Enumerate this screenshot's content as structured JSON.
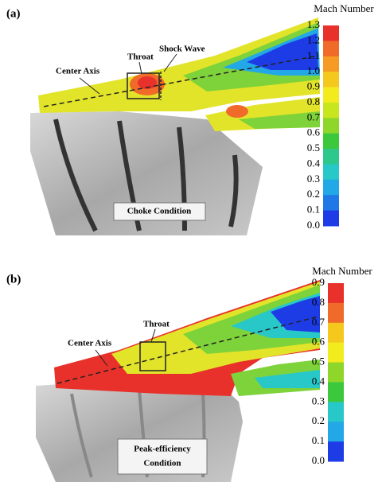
{
  "panels": [
    {
      "label": "(a)",
      "annotations": {
        "center_axis": "Center Axis",
        "throat": "Throat",
        "shock_wave": "Shock Wave"
      },
      "condition": [
        "Choke Condition"
      ],
      "colorbar": {
        "title": "Mach Number",
        "labels": [
          "1.3",
          "1.2",
          "1.1",
          "1.0",
          "0.9",
          "0.8",
          "0.7",
          "0.6",
          "0.5",
          "0.4",
          "0.3",
          "0.2",
          "0.1",
          "0.0"
        ]
      }
    },
    {
      "label": "(b)",
      "annotations": {
        "center_axis": "Center Axis",
        "throat": "Throat"
      },
      "condition": [
        "Peak-efficiency",
        "Condition"
      ],
      "colorbar": {
        "title": "Mach Number",
        "labels": [
          "0.9",
          "0.8",
          "0.7",
          "0.6",
          "0.5",
          "0.4",
          "0.3",
          "0.2",
          "0.1",
          "0.0"
        ]
      }
    }
  ]
}
